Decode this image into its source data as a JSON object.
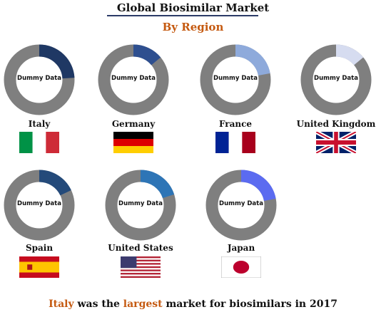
{
  "header": {
    "title": "Global Biosimilar Market",
    "subtitle": "By Region"
  },
  "colors": {
    "accent": "#c55a11",
    "title_rule": "#2b3a67",
    "donut_remainder": "#7f7f7f"
  },
  "chart_data": {
    "type": "pie",
    "style": "donut",
    "center_label": "Dummy Data",
    "regions": [
      {
        "country": "Italy",
        "share": 0.24,
        "color": "#1f3864",
        "flag": "italy-flag"
      },
      {
        "country": "Germany",
        "share": 0.14,
        "color": "#2e4f8f",
        "flag": "germany-flag"
      },
      {
        "country": "France",
        "share": 0.22,
        "color": "#8eaadb",
        "flag": "france-flag"
      },
      {
        "country": "United Kingdom",
        "share": 0.14,
        "color": "#d6dcf0",
        "flag": "uk-flag"
      },
      {
        "country": "Spain",
        "share": 0.18,
        "color": "#244a7a",
        "flag": "spain-flag"
      },
      {
        "country": "United States",
        "share": 0.2,
        "color": "#2e75b6",
        "flag": "usa-flag"
      },
      {
        "country": "Japan",
        "share": 0.22,
        "color": "#5b6bf0",
        "flag": "japan-flag"
      }
    ]
  },
  "footer": {
    "part1": "Italy",
    "part2": " was the ",
    "part3": "largest",
    "part4": " market for biosimilars in 2017"
  }
}
